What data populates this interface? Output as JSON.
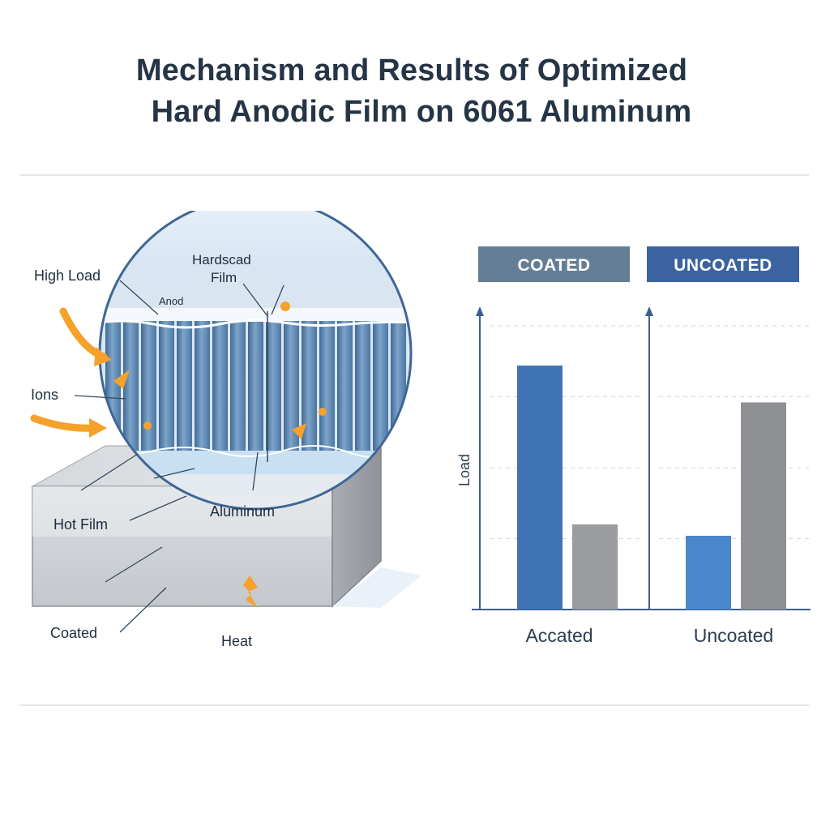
{
  "title": {
    "line1": "Mechanism and Results of Optimized",
    "line2": "Hard Anodic Film on 6061 Aluminum"
  },
  "illustration": {
    "labels": {
      "high_load": "High Load",
      "ions": "Ions",
      "hot_film": "Hot Film",
      "coated": "Coated",
      "heat": "Heat",
      "hardscad_film_1": "Hardscad",
      "hardscad_film_2": "Film",
      "anod": "Anod",
      "aluminum": "Aluminum"
    },
    "colors": {
      "film_blue": "#5f86ad",
      "circle_border": "#3f6796",
      "arrow_orange": "#f5a12a",
      "block_gray": "#cfd3d8"
    }
  },
  "chart_data": {
    "type": "bar",
    "panels": [
      {
        "header": "COATED",
        "header_color": "#647f95",
        "category": "Accated",
        "values": [
          0.86,
          0.3
        ],
        "colors": [
          "#3f73b5",
          "#9b9c9f"
        ]
      },
      {
        "header": "UNCOATED",
        "header_color": "#3b63a0",
        "category": "Uncoated",
        "values": [
          0.26,
          0.73
        ],
        "colors": [
          "#4a86cc",
          "#8f9094"
        ]
      }
    ],
    "ylabel": "Load",
    "ylim": [
      0,
      1
    ],
    "grid": true
  }
}
